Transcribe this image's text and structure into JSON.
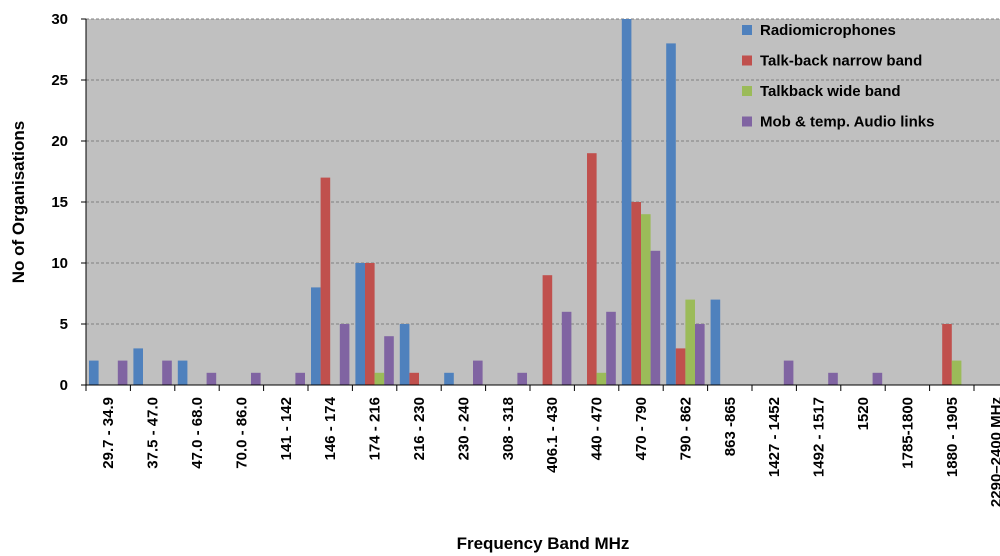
{
  "chart_data": {
    "type": "bar",
    "title": "",
    "xlabel": "Frequency Band MHz",
    "ylabel": "No of Organisations",
    "ylim": [
      0,
      30
    ],
    "yticks": [
      0,
      5,
      10,
      15,
      20,
      25,
      30
    ],
    "grid": true,
    "legend_position": "top-right",
    "categories": [
      "29.7 - 34.9",
      "37.5 - 47.0",
      "47.0 - 68.0",
      "70.0 - 86.0",
      "141 - 142",
      "146 - 174",
      "174 - 216",
      "216 - 230",
      "230 - 240",
      "308 - 318",
      "406.1 - 430",
      "440 - 470",
      "470 - 790",
      "790 - 862",
      "863 -865",
      "1427 - 1452",
      "1492 - 1517",
      "1520",
      "1785-1800",
      "1880 - 1905",
      "2290–2400 MHz"
    ],
    "series": [
      {
        "name": "Radiomicrophones",
        "color": "#4f81bd",
        "values": [
          2,
          3,
          2,
          0,
          0,
          8,
          10,
          5,
          1,
          0,
          0,
          0,
          30,
          28,
          7,
          0,
          0,
          0,
          0,
          0,
          0
        ]
      },
      {
        "name": "Talk-back narrow band",
        "color": "#c0504d",
        "values": [
          0,
          0,
          0,
          0,
          0,
          17,
          10,
          1,
          0,
          0,
          9,
          19,
          15,
          3,
          0,
          0,
          0,
          0,
          0,
          5,
          0
        ]
      },
      {
        "name": "Talkback wide band",
        "color": "#9bbb59",
        "values": [
          0,
          0,
          0,
          0,
          0,
          0,
          1,
          0,
          0,
          0,
          0,
          1,
          14,
          7,
          0,
          0,
          0,
          0,
          0,
          2,
          0
        ]
      },
      {
        "name": "Mob & temp. Audio links",
        "color": "#8064a2",
        "values": [
          2,
          2,
          1,
          1,
          1,
          5,
          4,
          0,
          2,
          1,
          6,
          6,
          11,
          5,
          0,
          2,
          1,
          1,
          0,
          0,
          1
        ]
      }
    ]
  },
  "colors": {
    "plot_background": "#c0c0c0",
    "grid": "#7f7f7f"
  }
}
